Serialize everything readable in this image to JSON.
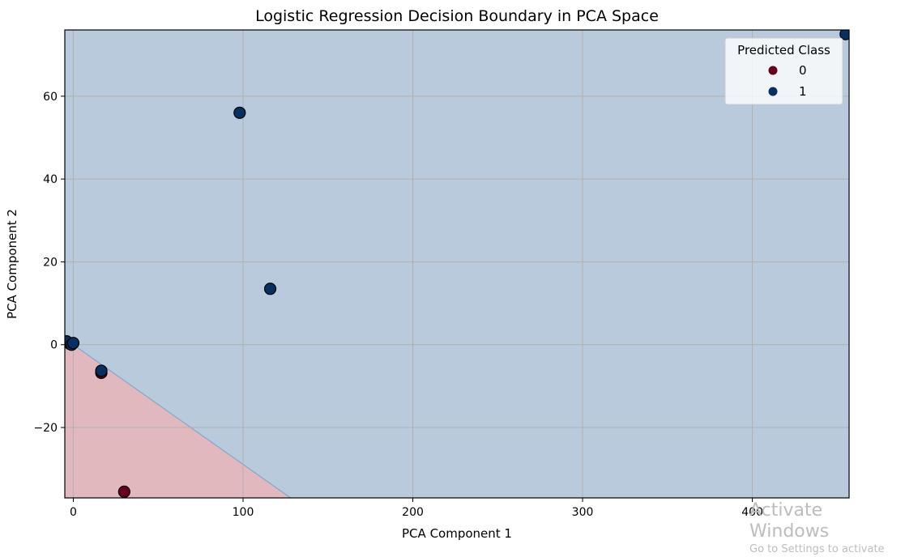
{
  "chart_data": {
    "type": "scatter",
    "title": "Logistic Regression Decision Boundary in PCA Space",
    "xlabel": "PCA Component 1",
    "ylabel": "PCA Component 2",
    "xlim": [
      -5,
      457
    ],
    "ylim": [
      -37,
      76
    ],
    "xticks": [
      0,
      100,
      200,
      300,
      400
    ],
    "yticks": [
      -20,
      0,
      20,
      40,
      60
    ],
    "grid": true,
    "legend": {
      "title": "Predicted Class",
      "placement": "upper right",
      "entries": [
        {
          "label": "0",
          "color": "#67001f"
        },
        {
          "label": "1",
          "color": "#053061"
        }
      ]
    },
    "region_colors": {
      "0": "#e2b8bf",
      "1": "#b8cadc"
    },
    "decision_boundary": [
      [
        0,
        0
      ],
      [
        128,
        -37
      ]
    ],
    "series": [
      {
        "label": "0",
        "color": "#67001f",
        "points": [
          [
            16.5,
            -6.8
          ],
          [
            30,
            -35.5
          ],
          [
            -2,
            0.2
          ]
        ]
      },
      {
        "label": "1",
        "color": "#053061",
        "points": [
          [
            98,
            56
          ],
          [
            116,
            13.5
          ],
          [
            16.5,
            -6.3
          ],
          [
            455,
            75
          ],
          [
            -4,
            0.8
          ],
          [
            -1,
            0
          ],
          [
            0,
            0.4
          ]
        ]
      }
    ]
  },
  "watermark": {
    "line1": "Activate Windows",
    "line2": "Go to Settings to activate"
  }
}
